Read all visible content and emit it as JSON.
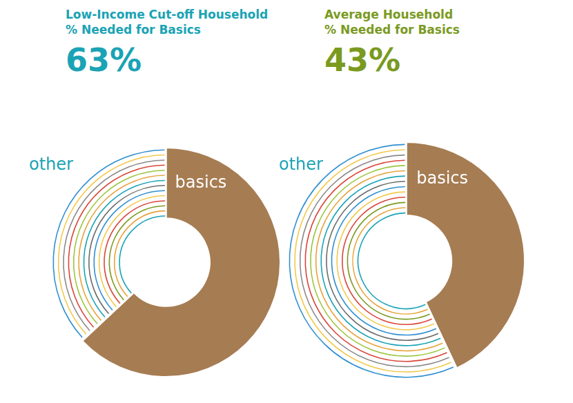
{
  "chart_data": [
    {
      "type": "doughnut",
      "title": [
        "Low-Income Cut-off Household",
        "% Needed for Basics"
      ],
      "categories": [
        "basics",
        "other"
      ],
      "values": [
        63,
        37
      ],
      "value_labels": [
        "63%",
        null
      ],
      "colors": [
        "#a67c52",
        "#ffffff"
      ]
    },
    {
      "type": "doughnut",
      "title": [
        "Average Household",
        "% Needed for Basics"
      ],
      "categories": [
        "basics",
        "other"
      ],
      "values": [
        43,
        57
      ],
      "value_labels": [
        "43%",
        null
      ],
      "colors": [
        "#a67c52",
        "#ffffff"
      ]
    }
  ]
}
